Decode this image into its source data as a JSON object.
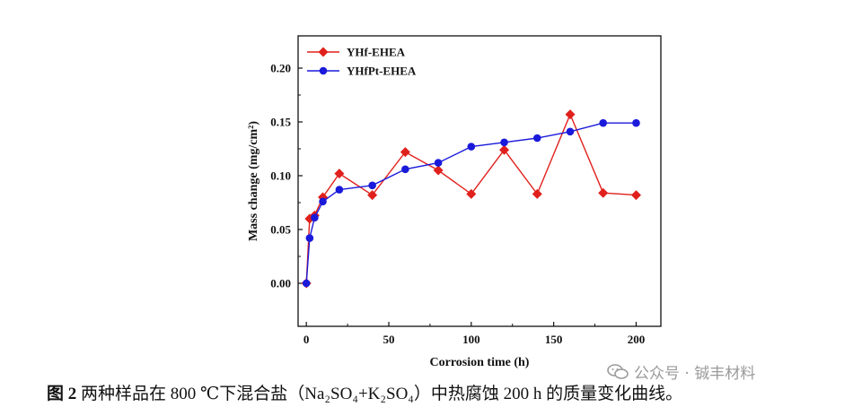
{
  "chart_data": {
    "type": "line",
    "title": "",
    "xlabel": "Corrosion time (h)",
    "ylabel": "Mass change (mg/cm²)",
    "xlim": [
      -5,
      215
    ],
    "ylim": [
      -0.04,
      0.23
    ],
    "xticks": [
      "0",
      "50",
      "100",
      "150",
      "200"
    ],
    "yticks": [
      "0.00",
      "0.05",
      "0.10",
      "0.15",
      "0.20"
    ],
    "legend_position": "top-left",
    "series": [
      {
        "name": "YHf-EHEA",
        "color": "#e0201c",
        "marker": "diamond",
        "x": [
          0,
          2,
          5,
          10,
          20,
          40,
          60,
          80,
          100,
          120,
          140,
          160,
          180,
          200
        ],
        "y": [
          0.0,
          0.06,
          0.063,
          0.08,
          0.102,
          0.082,
          0.122,
          0.105,
          0.083,
          0.124,
          0.083,
          0.157,
          0.084,
          0.082
        ]
      },
      {
        "name": "YHfPt-EHEA",
        "color": "#1a1adb",
        "marker": "circle",
        "x": [
          0,
          2,
          5,
          10,
          20,
          40,
          60,
          80,
          100,
          120,
          140,
          160,
          180,
          200
        ],
        "y": [
          0.0,
          0.042,
          0.061,
          0.076,
          0.087,
          0.091,
          0.106,
          0.112,
          0.127,
          0.131,
          0.135,
          0.141,
          0.149,
          0.149
        ]
      }
    ]
  },
  "caption": {
    "fig_label": "图 2",
    "text": "两种样品在 800 ℃下混合盐（Na₂SO₄+K₂SO₄）中热腐蚀 200 h 的质量变化曲线。"
  },
  "watermark": {
    "icon": "wechat-icon",
    "text": "公众号 · 铖丰材料"
  }
}
